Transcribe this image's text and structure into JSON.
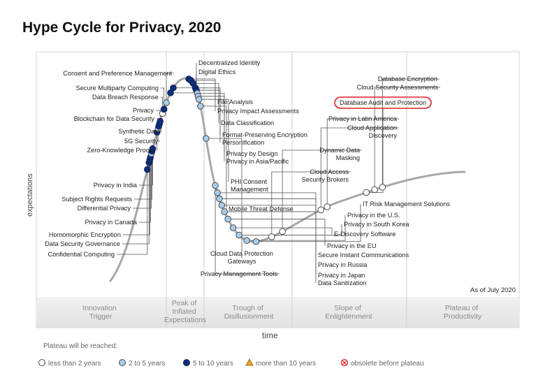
{
  "chart_data": {
    "type": "hype-cycle",
    "title": "Hype Cycle for Privacy, 2020",
    "ylabel": "expectations",
    "xlabel": "time",
    "as_of": "As of July 2020",
    "phases": [
      [
        "Innovation",
        "Trigger"
      ],
      [
        "Peak of",
        "Inflated",
        "Expectations"
      ],
      [
        "Trough of",
        "Disillusionment"
      ],
      [
        "Slope of",
        "Enlightenment"
      ],
      [
        "Plateau of",
        "Productivity"
      ]
    ],
    "legend_title": "Plateau will be reached:",
    "legend": [
      {
        "key": "lt2",
        "label": "less than 2 years",
        "color": "#ffffff"
      },
      {
        "key": "2to5",
        "label": "2 to 5 years",
        "color": "#a7cdea"
      },
      {
        "key": "5to10",
        "label": "5 to 10 years",
        "color": "#0e2f7a"
      },
      {
        "key": "gt10",
        "label": "more than 10 years",
        "color": "#f4a321"
      },
      {
        "key": "obsolete",
        "label": "obsolete before plateau",
        "color": "#e02020"
      }
    ],
    "highlight_color": "#e02020",
    "technologies": [
      {
        "name": "Confidential Computing",
        "t": 0.187,
        "cat": "5to10"
      },
      {
        "name": "Data Security Governance",
        "t": 0.198,
        "cat": "5to10"
      },
      {
        "name": "Homomorphic Encryption",
        "t": 0.203,
        "cat": "5to10"
      },
      {
        "name": "Privacy in Canada",
        "t": 0.207,
        "cat": "5to10"
      },
      {
        "name": "Differential Privacy",
        "t": 0.213,
        "cat": "2to5"
      },
      {
        "name": "Subject Rights Requests",
        "t": 0.217,
        "cat": "5to10"
      },
      {
        "name": "Privacy in India",
        "t": 0.221,
        "cat": "5to10"
      },
      {
        "name": "Zero-Knowledge Proofs",
        "t": 0.248,
        "cat": "5to10"
      },
      {
        "name": "5G Security",
        "t": 0.254,
        "cat": "2to5"
      },
      {
        "name": "Synthetic Data",
        "t": 0.258,
        "cat": "5to10"
      },
      {
        "name": "Blockchain for Data Security",
        "t": 0.262,
        "cat": "5to10"
      },
      {
        "name": "Privacy",
        "t": 0.266,
        "cat": "5to10"
      },
      {
        "name": "Data Breach Response",
        "t": 0.279,
        "cat": "lt2"
      },
      {
        "name": "Secure Multiparty Computing",
        "t": 0.286,
        "cat": "5to10"
      },
      {
        "name": "Consent and Preference Management",
        "t": 0.297,
        "cat": "2to5"
      },
      {
        "name": "Decentralized Identity",
        "t": 0.314,
        "cat": "5to10"
      },
      {
        "name": "Digital Ethics",
        "t": 0.323,
        "cat": "5to10"
      },
      {
        "name": "File Analysis",
        "t": 0.354,
        "cat": "5to10"
      },
      {
        "name": "Privacy Impact Assessments",
        "t": 0.358,
        "cat": "5to10"
      },
      {
        "name": "Data Classification",
        "t": 0.364,
        "cat": "5to10"
      },
      {
        "name": "Format-Preserving Encryption",
        "t": 0.372,
        "cat": "5to10"
      },
      {
        "name": "Personification",
        "t": 0.376,
        "cat": "5to10"
      },
      {
        "name": "Privacy by Design",
        "t": 0.381,
        "cat": "2to5"
      },
      {
        "name": "Privacy in Asia/Pacific",
        "t": 0.386,
        "cat": "2to5"
      },
      {
        "name": "PHI Consent Management",
        "t": 0.391,
        "cat": "2to5"
      },
      {
        "name": "Mobile Threat Defense",
        "t": 0.402,
        "cat": "2to5"
      },
      {
        "name": "Cloud Data Protection Gateways",
        "t": 0.454,
        "cat": "2to5"
      },
      {
        "name": "Privacy Management Tools",
        "t": 0.53,
        "cat": "2to5"
      },
      {
        "name": "Data Sanitization",
        "t": 0.542,
        "cat": "2to5"
      },
      {
        "name": "Privacy in Japan",
        "t": 0.552,
        "cat": "2to5"
      },
      {
        "name": "Privacy in Russia",
        "t": 0.563,
        "cat": "2to5"
      },
      {
        "name": "Secure Instant Communications",
        "t": 0.574,
        "cat": "2to5"
      },
      {
        "name": "Privacy in the EU",
        "t": 0.587,
        "cat": "2to5"
      },
      {
        "name": "E-Discovery Software",
        "t": 0.603,
        "cat": "2to5"
      },
      {
        "name": "Privacy in South Korea",
        "t": 0.618,
        "cat": "2to5"
      },
      {
        "name": "Privacy in the U.S.",
        "t": 0.633,
        "cat": "2to5"
      },
      {
        "name": "IT Risk Management Solutions",
        "t": 0.648,
        "cat": "2to5"
      },
      {
        "name": "Cloud Access Security Brokers",
        "t": 0.674,
        "cat": "lt2"
      },
      {
        "name": "Dynamic Data Masking",
        "t": 0.693,
        "cat": "lt2"
      },
      {
        "name": "Cloud Application Discovery",
        "t": 0.763,
        "cat": "lt2"
      },
      {
        "name": "Privacy in Latin America",
        "t": 0.774,
        "cat": "lt2"
      },
      {
        "name": "Database Audit and Protection",
        "t": 0.84,
        "cat": "lt2",
        "highlight": true
      },
      {
        "name": "Cloud Security Assessments",
        "t": 0.854,
        "cat": "lt2"
      },
      {
        "name": "Database Encryption",
        "t": 0.867,
        "cat": "lt2"
      }
    ]
  }
}
